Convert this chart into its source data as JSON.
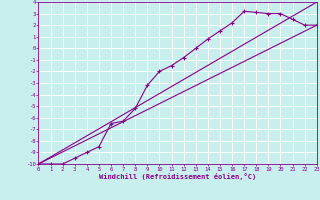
{
  "title": "",
  "xlabel": "Windchill (Refroidissement éolien,°C)",
  "ylabel": "",
  "bg_color": "#c8eeee",
  "grid_color": "#ffffff",
  "line_color": "#880088",
  "xmin": 0,
  "xmax": 23,
  "ymin": -10,
  "ymax": 4,
  "data_x": [
    0,
    1,
    2,
    3,
    4,
    5,
    6,
    7,
    8,
    9,
    10,
    11,
    12,
    13,
    14,
    15,
    16,
    17,
    18,
    19,
    20,
    21,
    22,
    23
  ],
  "data_y": [
    -10,
    -10,
    -10,
    -9.5,
    -9,
    -8.5,
    -6.5,
    -6.3,
    -5.2,
    -3.2,
    -2.0,
    -1.5,
    -0.8,
    0.0,
    0.8,
    1.5,
    2.2,
    3.2,
    3.1,
    3.0,
    3.0,
    2.5,
    2.0,
    2.0
  ],
  "line1_x": [
    0,
    23
  ],
  "line1_y": [
    -10,
    4
  ],
  "line2_x": [
    0,
    23
  ],
  "line2_y": [
    -10,
    2
  ],
  "xticks": [
    0,
    1,
    2,
    3,
    4,
    5,
    6,
    7,
    8,
    9,
    10,
    11,
    12,
    13,
    14,
    15,
    16,
    17,
    18,
    19,
    20,
    21,
    22,
    23
  ],
  "yticks": [
    -10,
    -9,
    -8,
    -7,
    -6,
    -5,
    -4,
    -3,
    -2,
    -1,
    0,
    1,
    2,
    3,
    4
  ]
}
